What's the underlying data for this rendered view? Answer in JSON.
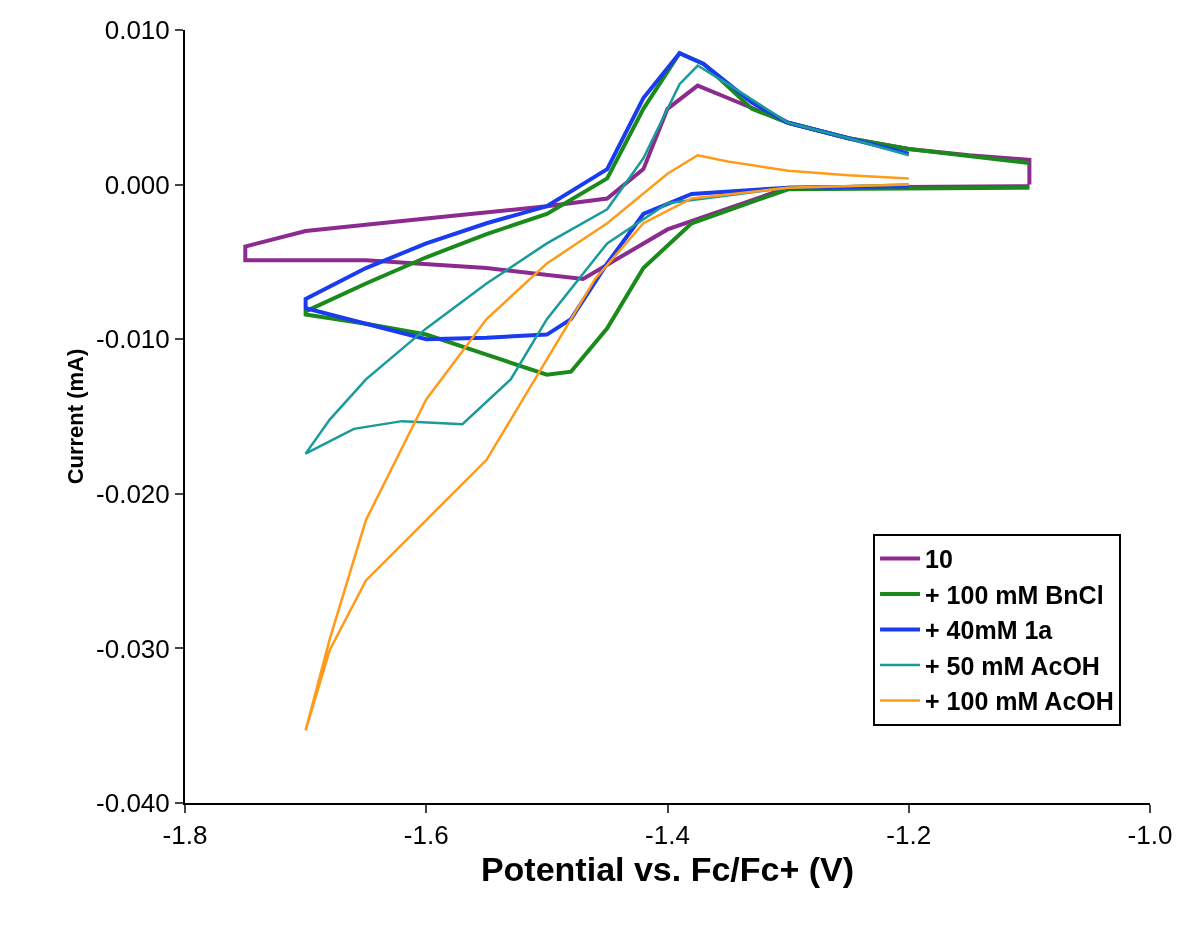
{
  "chart_data": {
    "type": "line",
    "xlabel": "Potential vs. Fc/Fc+ (V)",
    "ylabel": "Current (mA)",
    "xlim": [
      -1.8,
      -1.0
    ],
    "ylim": [
      -0.04,
      0.01
    ],
    "xticks": [
      {
        "value": -1.8,
        "label": "-1.8"
      },
      {
        "value": -1.6,
        "label": "-1.6"
      },
      {
        "value": -1.4,
        "label": "-1.4"
      },
      {
        "value": -1.2,
        "label": "-1.2"
      },
      {
        "value": -1.0,
        "label": "-1.0"
      }
    ],
    "yticks": [
      {
        "value": -0.04,
        "label": "-0.040"
      },
      {
        "value": -0.03,
        "label": "-0.030"
      },
      {
        "value": -0.02,
        "label": "-0.020"
      },
      {
        "value": -0.01,
        "label": "-0.010"
      },
      {
        "value": 0,
        "label": "0.000"
      },
      {
        "value": 0.01,
        "label": "0.010"
      }
    ],
    "legend": "bottom right",
    "marker": "none",
    "line_style": "solid",
    "series": [
      {
        "name": "10",
        "color": "#8b2a8f",
        "x": [
          -1.1,
          -1.3,
          -1.4,
          -1.47,
          -1.55,
          -1.65,
          -1.75,
          -1.75,
          -1.7,
          -1.6,
          -1.5,
          -1.45,
          -1.42,
          -1.4,
          -1.375,
          -1.35,
          -1.3,
          -1.25,
          -1.2,
          -1.15,
          -1.1,
          -1.1
        ],
        "values": [
          -0.0001,
          -0.0002,
          -0.0029,
          -0.0061,
          -0.0054,
          -0.0049,
          -0.0049,
          -0.004,
          -0.003,
          -0.0022,
          -0.0014,
          -0.0009,
          0.001,
          0.0049,
          0.0064,
          0.0056,
          0.004,
          0.003,
          0.0023,
          0.0019,
          0.0016,
          0.0
        ]
      },
      {
        "name": "+ 100 mM BnCl",
        "color": "#1a8a1a",
        "x": [
          -1.1,
          -1.3,
          -1.38,
          -1.42,
          -1.45,
          -1.48,
          -1.5,
          -1.55,
          -1.6,
          -1.65,
          -1.7,
          -1.7,
          -1.65,
          -1.6,
          -1.55,
          -1.5,
          -1.45,
          -1.42,
          -1.39,
          -1.37,
          -1.33,
          -1.3,
          -1.25,
          -1.2,
          -1.1
        ],
        "values": [
          -0.0002,
          -0.0003,
          -0.0025,
          -0.0054,
          -0.0093,
          -0.0121,
          -0.0123,
          -0.011,
          -0.0097,
          -0.009,
          -0.0084,
          -0.0082,
          -0.0064,
          -0.0047,
          -0.0032,
          -0.0019,
          0.0004,
          0.0049,
          0.0085,
          0.0078,
          0.0049,
          0.004,
          0.003,
          0.0023,
          0.0014
        ]
      },
      {
        "name": "+ 40mM 1a",
        "color": "#1a3cf0",
        "x": [
          -1.2,
          -1.3,
          -1.38,
          -1.42,
          -1.45,
          -1.48,
          -1.5,
          -1.55,
          -1.6,
          -1.65,
          -1.7,
          -1.7,
          -1.65,
          -1.6,
          -1.55,
          -1.5,
          -1.45,
          -1.42,
          -1.39,
          -1.37,
          -1.33,
          -1.3,
          -1.25,
          -1.2
        ],
        "values": [
          -0.0001,
          -0.0002,
          -0.0006,
          -0.0019,
          -0.0051,
          -0.0087,
          -0.0097,
          -0.0099,
          -0.01,
          -0.009,
          -0.008,
          -0.0074,
          -0.0054,
          -0.0038,
          -0.0025,
          -0.0014,
          0.001,
          0.0056,
          0.0085,
          0.0078,
          0.0053,
          0.004,
          0.003,
          0.002
        ]
      },
      {
        "name": "+ 50 mM AcOH",
        "color": "#1a9a9a",
        "x": [
          -1.2,
          -1.3,
          -1.4,
          -1.45,
          -1.5,
          -1.53,
          -1.57,
          -1.62,
          -1.66,
          -1.7,
          -1.68,
          -1.65,
          -1.6,
          -1.55,
          -1.5,
          -1.45,
          -1.42,
          -1.39,
          -1.375,
          -1.35,
          -1.3,
          -1.25,
          -1.2
        ],
        "values": [
          0,
          -0.0002,
          -0.0012,
          -0.0038,
          -0.0087,
          -0.0126,
          -0.0155,
          -0.0153,
          -0.0158,
          -0.0174,
          -0.0152,
          -0.0126,
          -0.0093,
          -0.0064,
          -0.0038,
          -0.0016,
          0.0017,
          0.0065,
          0.0077,
          0.0065,
          0.004,
          0.003,
          0.0019
        ]
      },
      {
        "name": "+ 100 mM AcOH",
        "color": "#ff9a1a",
        "x": [
          -1.2,
          -1.3,
          -1.38,
          -1.42,
          -1.46,
          -1.5,
          -1.55,
          -1.6,
          -1.65,
          -1.68,
          -1.7,
          -1.68,
          -1.65,
          -1.6,
          -1.55,
          -1.5,
          -1.45,
          -1.4,
          -1.375,
          -1.35,
          -1.3,
          -1.25,
          -1.2
        ],
        "values": [
          0,
          -0.0002,
          -0.0009,
          -0.0025,
          -0.0061,
          -0.0113,
          -0.0178,
          -0.0217,
          -0.0256,
          -0.0301,
          -0.0353,
          -0.0294,
          -0.0217,
          -0.0139,
          -0.0087,
          -0.0051,
          -0.0025,
          0.0007,
          0.0019,
          0.0015,
          0.0009,
          0.0006,
          0.0004
        ]
      }
    ]
  }
}
